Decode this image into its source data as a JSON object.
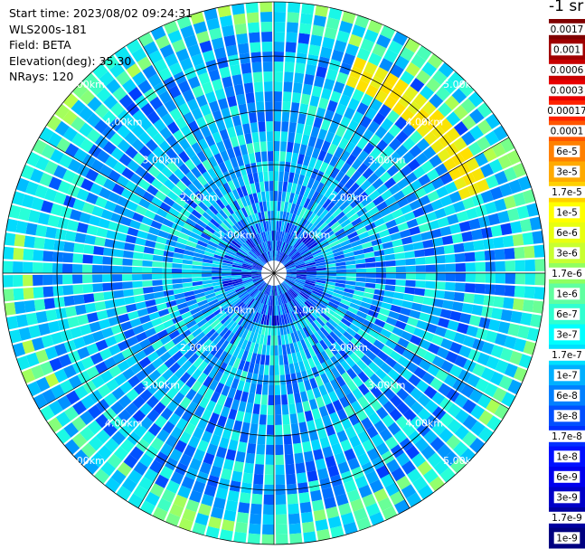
{
  "header": {
    "start_time": "Start time: 2023/08/02 09:24:31",
    "device": "WLS200s-181",
    "field": "Field: BETA",
    "elevation": "Elevation(deg): 35.30",
    "nrays": "NRays: 120"
  },
  "colorbar": {
    "unit": "-1 sr",
    "labels": [
      "0.0017",
      "0.001",
      "0.0006",
      "0.0003",
      "0.00017",
      "0.0001",
      "6e-5",
      "3e-5",
      "1.7e-5",
      "1e-5",
      "6e-6",
      "3e-6",
      "1.7e-6",
      "1e-6",
      "6e-7",
      "3e-7",
      "1.7e-7",
      "1e-7",
      "6e-8",
      "3e-8",
      "1.7e-8",
      "1e-8",
      "6e-9",
      "3e-9",
      "1.7e-9",
      "1e-9"
    ],
    "colors": [
      "#800000",
      "#a00000",
      "#c80000",
      "#e80000",
      "#ff2200",
      "#ff5500",
      "#ff8000",
      "#ffaa00",
      "#ffd000",
      "#ffff00",
      "#e8ff10",
      "#c8ff30",
      "#90ff60",
      "#60ffa0",
      "#30ffd0",
      "#00ffff",
      "#00e0ff",
      "#00b0ff",
      "#0080ff",
      "#0050ff",
      "#0030ff",
      "#0010ff",
      "#0000ee",
      "#0000c8",
      "#0000a0",
      "#000080"
    ]
  },
  "chart_data": {
    "type": "heatmap",
    "projection": "polar PPI",
    "range_rings_km": [
      1.0,
      2.0,
      3.0,
      4.0,
      5.0
    ],
    "ring_labels": [
      "1.00km",
      "2.00km",
      "3.00km",
      "4.00km",
      "5.00km"
    ],
    "radial_grid_deg": [
      0,
      30,
      60,
      90,
      120,
      150,
      180,
      210,
      240,
      270,
      300,
      330
    ],
    "nrays": 120,
    "max_range_km": 5.0,
    "variable": "BETA",
    "color_scale": "log"
  }
}
